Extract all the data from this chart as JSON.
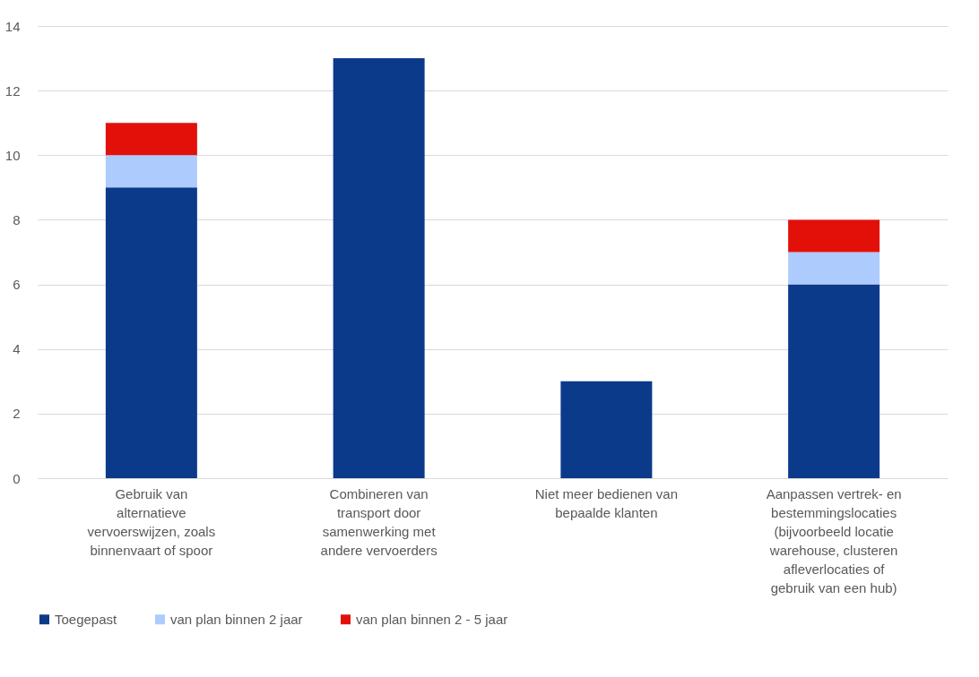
{
  "chart_data": {
    "type": "bar",
    "stacked": true,
    "categories": [
      "Gebruik van alternatieve vervoerswijzen, zoals binnenvaart of spoor",
      "Combineren van transport door samenwerking met andere vervoerders",
      "Niet meer bedienen van bepaalde klanten",
      "Aanpassen vertrek- en bestemmingslocaties (bijvoorbeeld locatie warehouse, clusteren afleverlocaties of gebruik van een hub)"
    ],
    "series": [
      {
        "name": "Toegepast",
        "color": "#0c3a8b",
        "values": [
          9,
          13,
          3,
          6
        ]
      },
      {
        "name": "van plan binnen 2 jaar",
        "color": "#adcbfd",
        "values": [
          1,
          null,
          null,
          1
        ]
      },
      {
        "name": "van plan binnen 2 - 5 jaar",
        "color": "#e3100a",
        "values": [
          1,
          null,
          null,
          1
        ]
      }
    ],
    "ylim": [
      0,
      14
    ],
    "yticks": [
      0,
      2,
      4,
      6,
      8,
      10,
      12,
      14
    ],
    "grid": "y",
    "legend": "bottom"
  }
}
